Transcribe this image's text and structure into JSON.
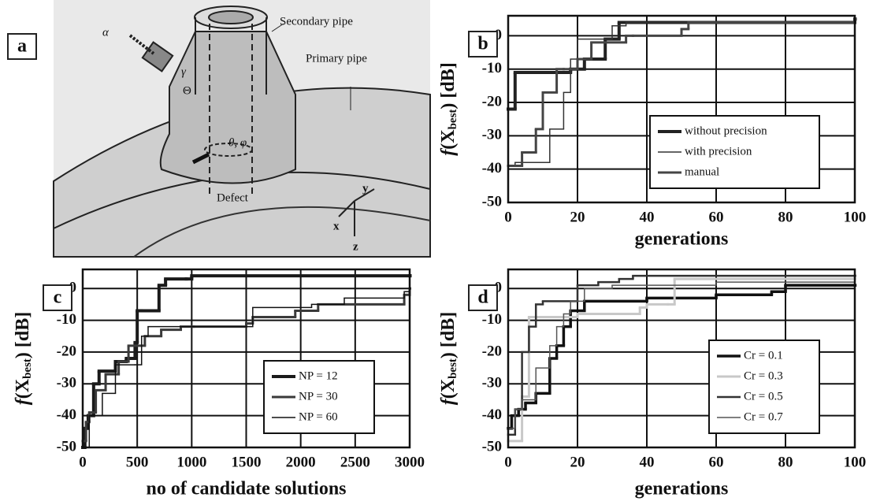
{
  "diagram": {
    "label": "a",
    "secondary": "Secondary pipe",
    "primary": "Primary pipe",
    "defect": "Defect",
    "alpha": "α",
    "gamma": "γ",
    "Theta": "Θ",
    "theta_phi": "θ, φ",
    "y": "y",
    "x": "x",
    "z": "z"
  },
  "chart_data": [
    {
      "type": "line",
      "label": "b",
      "x_label": "generations",
      "y_label": "f",
      "y_label_mid": "(X",
      "y_label_sub": "best",
      "y_label_end": ") [dB]",
      "xlim": [
        0,
        100
      ],
      "ylim": [
        -50,
        6
      ],
      "xticks": [
        0,
        20,
        40,
        60,
        80,
        100
      ],
      "yticks": [
        0,
        -10,
        -20,
        -30,
        -40,
        -50
      ],
      "grid": true,
      "legend": "lower right",
      "series": [
        {
          "name": "without precision",
          "color": "#222222",
          "x": [
            0,
            2,
            18,
            22,
            28,
            32,
            100
          ],
          "values": [
            -22,
            -11,
            -10,
            -7,
            -1,
            4,
            5
          ]
        },
        {
          "name": "with precision",
          "color": "#333333",
          "x": [
            0,
            2,
            12,
            16,
            18,
            20,
            30,
            34,
            100
          ],
          "values": [
            -39,
            -38,
            -28,
            -17,
            -7,
            -1,
            3,
            4,
            5
          ]
        },
        {
          "name": "manual",
          "color": "#444444",
          "x": [
            0,
            4,
            8,
            10,
            14,
            16,
            20,
            24,
            34,
            36,
            50,
            52,
            100
          ],
          "values": [
            -39,
            -35,
            -28,
            -17,
            -10,
            -10,
            -7,
            -2,
            0,
            0,
            2,
            4,
            5
          ]
        }
      ]
    },
    {
      "type": "line",
      "label": "c",
      "x_label": "no of candidate solutions",
      "y_label": "f",
      "y_label_mid": "(X",
      "y_label_sub": "best",
      "y_label_end": ") [dB]",
      "xlim": [
        0,
        3000
      ],
      "ylim": [
        -50,
        6
      ],
      "xticks": [
        0,
        500,
        1000,
        1500,
        2000,
        2500,
        3000
      ],
      "yticks": [
        0,
        -10,
        -20,
        -30,
        -40,
        -50
      ],
      "grid": true,
      "legend": "lower right",
      "series": [
        {
          "name": "NP = 12",
          "color": "#1a1a1a",
          "x": [
            0,
            20,
            50,
            100,
            150,
            300,
            400,
            480,
            500,
            540,
            700,
            760,
            950,
            1000,
            3000
          ],
          "values": [
            -50,
            -44,
            -40,
            -30,
            -26,
            -23,
            -22,
            -17,
            -7,
            -7,
            1,
            3,
            3,
            4,
            4
          ]
        },
        {
          "name": "NP = 30",
          "color": "#3a3a3a",
          "x": [
            0,
            30,
            60,
            120,
            210,
            330,
            420,
            570,
            720,
            900,
            1020,
            1500,
            1560,
            1950,
            2160,
            2950,
            3000
          ],
          "values": [
            -48,
            -42,
            -39,
            -32,
            -27,
            -23,
            -18,
            -15,
            -13,
            -12,
            -12,
            -11,
            -9,
            -7,
            -5,
            -2,
            0
          ]
        },
        {
          "name": "NP = 60",
          "color": "#111111",
          "x": [
            0,
            60,
            180,
            300,
            480,
            540,
            600,
            900,
            1500,
            1560,
            2100,
            2400,
            2950,
            3000
          ],
          "values": [
            -50,
            -40,
            -33,
            -24,
            -24,
            -15,
            -12,
            -12,
            -12,
            -6,
            -5,
            -3,
            -1,
            0
          ]
        }
      ]
    },
    {
      "type": "line",
      "label": "d",
      "x_label": "generations",
      "y_label": "f",
      "y_label_mid": "(X",
      "y_label_sub": "best",
      "y_label_end": ") [dB]",
      "xlim": [
        0,
        100
      ],
      "ylim": [
        -50,
        6
      ],
      "xticks": [
        0,
        20,
        40,
        60,
        80,
        100
      ],
      "yticks": [
        0,
        -10,
        -20,
        -30,
        -40,
        -50
      ],
      "grid": true,
      "legend": "lower right",
      "series": [
        {
          "name": "Cr = 0.1",
          "color": "#111111",
          "x": [
            0,
            1,
            3,
            5,
            8,
            12,
            14,
            16,
            18,
            22,
            40,
            60,
            76,
            80,
            100
          ],
          "values": [
            -44,
            -40,
            -38,
            -36,
            -33,
            -22,
            -18,
            -12,
            -7,
            -4,
            -3,
            -2,
            -1,
            1,
            1
          ]
        },
        {
          "name": "Cr = 0.3",
          "color": "#c8c8c8",
          "x": [
            0,
            4,
            6,
            20,
            38,
            40,
            46,
            48,
            100
          ],
          "values": [
            -48,
            -34,
            -9,
            -8,
            -6,
            -5,
            -5,
            3,
            4
          ]
        },
        {
          "name": "Cr = 0.5",
          "color": "#333333",
          "x": [
            0,
            2,
            4,
            6,
            8,
            10,
            20,
            26,
            32,
            36,
            100
          ],
          "values": [
            -46,
            -38,
            -20,
            -12,
            -5,
            -4,
            1,
            2,
            3,
            4,
            4
          ]
        },
        {
          "name": "Cr = 0.7",
          "color": "#555555",
          "x": [
            0,
            2,
            4,
            8,
            12,
            14,
            16,
            18,
            22,
            30,
            60,
            80,
            100
          ],
          "values": [
            -44,
            -38,
            -35,
            -25,
            -18,
            -12,
            -8,
            -4,
            0,
            1,
            2,
            2,
            3
          ]
        }
      ]
    }
  ]
}
